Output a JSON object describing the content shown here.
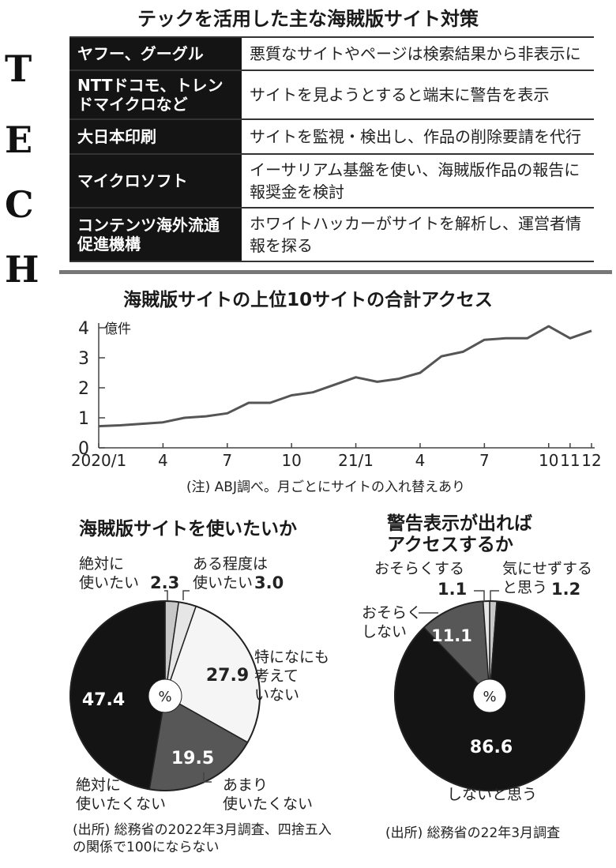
{
  "header": {
    "tech_letters": [
      "T",
      "E",
      "C",
      "H"
    ]
  },
  "measures": {
    "title": "テックを活用した主な海賊版サイト対策",
    "rows": [
      {
        "org": "ヤフー、グーグル",
        "desc": "悪質なサイトやページは検索結果から非表示に"
      },
      {
        "org": "NTTドコモ、トレンドマイクロなど",
        "desc": "サイトを見ようとすると端末に警告を表示"
      },
      {
        "org": "大日本印刷",
        "desc": "サイトを監視・検出し、作品の削除要請を代行"
      },
      {
        "org": "マイクロソフト",
        "desc": "イーサリアム基盤を使い、海賊版作品の報告に報奨金を検討"
      },
      {
        "org": "コンテンツ海外流通促進機構",
        "desc": "ホワイトハッカーがサイトを解析し、運営者情報を探る"
      }
    ]
  },
  "chart_data": [
    {
      "type": "line",
      "title": "海賊版サイトの上位10サイトの合計アクセス",
      "ylabel": "億件",
      "ylim": [
        0,
        4
      ],
      "yticks": [
        "0",
        "1",
        "2",
        "3",
        "4"
      ],
      "xtick_labels": [
        "2020/1",
        "4",
        "7",
        "10",
        "21/1",
        "4",
        "7",
        "10",
        "11",
        "12"
      ],
      "xtick_months": [
        1,
        4,
        7,
        10,
        13,
        16,
        19,
        22,
        23,
        24
      ],
      "x_months": [
        1,
        2,
        3,
        4,
        5,
        6,
        7,
        8,
        9,
        10,
        11,
        12,
        13,
        14,
        15,
        16,
        17,
        18,
        19,
        20,
        21,
        22,
        23,
        24
      ],
      "values": [
        0.72,
        0.75,
        0.8,
        0.85,
        1.0,
        1.05,
        1.15,
        1.5,
        1.5,
        1.75,
        1.85,
        2.1,
        2.35,
        2.2,
        2.3,
        2.5,
        3.05,
        3.2,
        3.6,
        3.65,
        3.65,
        4.05,
        3.65,
        3.9
      ],
      "note": "(注) ABJ調べ。月ごとにサイトの入れ替えあり"
    },
    {
      "type": "pie",
      "title": "海賊版サイトを使いたいか",
      "unit": "%",
      "slices": [
        {
          "label": "絶対に使いたい",
          "value": 2.3,
          "color": "#c8c8c8"
        },
        {
          "label": "ある程度は使いたい",
          "value": 3.0,
          "color": "#e6e6e6"
        },
        {
          "label": "特になにも考えていない",
          "value": 27.9,
          "color": "#f5f5f5"
        },
        {
          "label": "あまり使いたくない",
          "value": 19.5,
          "color": "#575757"
        },
        {
          "label": "絶対に使いたくない",
          "value": 47.4,
          "color": "#141414"
        }
      ],
      "labels": {
        "want_label": "絶対に\n使いたい",
        "want_value": "2.3",
        "some_label": "ある程度は\n使いたい",
        "some_value": "3.0",
        "nothing_label": "特になにも\n考えて\nいない",
        "nothing_value": "27.9",
        "rarely_label": "あまり\n使いたくない",
        "rarely_value": "19.5",
        "never_label": "絶対に\n使いたくない",
        "never_value": "47.4"
      },
      "source": "(出所) 総務省の2022年3月調査、四捨五入の関係で100にならない"
    },
    {
      "type": "pie",
      "title": "警告表示が出ればアクセスするか",
      "unit": "%",
      "slices": [
        {
          "label": "気にせずすると思う",
          "value": 1.2,
          "color": "#c8c8c8"
        },
        {
          "label": "しないと思う",
          "value": 86.6,
          "color": "#141414"
        },
        {
          "label": "おそらくしない",
          "value": 11.1,
          "color": "#575757"
        },
        {
          "label": "おそらくする",
          "value": 1.1,
          "color": "#e6e6e6"
        }
      ],
      "labels": {
        "maybe_do_label": "おそらくする",
        "maybe_do_value": "1.1",
        "nocare_label": "気にせずする\nと思う",
        "nocare_value": "1.2",
        "maybe_not_label": "おそらく\nしない",
        "maybe_not_value": "11.1",
        "not_label": "しないと思う",
        "not_value": "86.6"
      },
      "source": "(出所) 総務省の22年3月調査"
    }
  ]
}
